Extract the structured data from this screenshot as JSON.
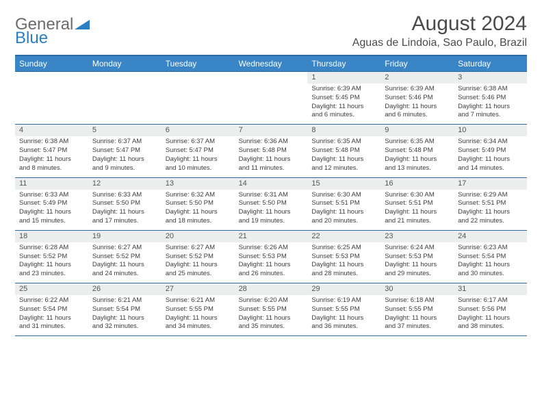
{
  "brand": {
    "part1": "General",
    "part2": "Blue"
  },
  "title": "August 2024",
  "location": "Aguas de Lindoia, Sao Paulo, Brazil",
  "colors": {
    "header_bg": "#3a85c6",
    "header_border": "#2b6aa0",
    "date_bg": "#eceded",
    "text": "#3c3c3c",
    "brand_gray": "#6b6b6b",
    "brand_blue": "#2b7ec2"
  },
  "day_names": [
    "Sunday",
    "Monday",
    "Tuesday",
    "Wednesday",
    "Thursday",
    "Friday",
    "Saturday"
  ],
  "weeks": [
    [
      {
        "n": "",
        "sr": "",
        "ss": "",
        "dl1": "",
        "dl2": ""
      },
      {
        "n": "",
        "sr": "",
        "ss": "",
        "dl1": "",
        "dl2": ""
      },
      {
        "n": "",
        "sr": "",
        "ss": "",
        "dl1": "",
        "dl2": ""
      },
      {
        "n": "",
        "sr": "",
        "ss": "",
        "dl1": "",
        "dl2": ""
      },
      {
        "n": "1",
        "sr": "Sunrise: 6:39 AM",
        "ss": "Sunset: 5:45 PM",
        "dl1": "Daylight: 11 hours",
        "dl2": "and 6 minutes."
      },
      {
        "n": "2",
        "sr": "Sunrise: 6:39 AM",
        "ss": "Sunset: 5:46 PM",
        "dl1": "Daylight: 11 hours",
        "dl2": "and 6 minutes."
      },
      {
        "n": "3",
        "sr": "Sunrise: 6:38 AM",
        "ss": "Sunset: 5:46 PM",
        "dl1": "Daylight: 11 hours",
        "dl2": "and 7 minutes."
      }
    ],
    [
      {
        "n": "4",
        "sr": "Sunrise: 6:38 AM",
        "ss": "Sunset: 5:47 PM",
        "dl1": "Daylight: 11 hours",
        "dl2": "and 8 minutes."
      },
      {
        "n": "5",
        "sr": "Sunrise: 6:37 AM",
        "ss": "Sunset: 5:47 PM",
        "dl1": "Daylight: 11 hours",
        "dl2": "and 9 minutes."
      },
      {
        "n": "6",
        "sr": "Sunrise: 6:37 AM",
        "ss": "Sunset: 5:47 PM",
        "dl1": "Daylight: 11 hours",
        "dl2": "and 10 minutes."
      },
      {
        "n": "7",
        "sr": "Sunrise: 6:36 AM",
        "ss": "Sunset: 5:48 PM",
        "dl1": "Daylight: 11 hours",
        "dl2": "and 11 minutes."
      },
      {
        "n": "8",
        "sr": "Sunrise: 6:35 AM",
        "ss": "Sunset: 5:48 PM",
        "dl1": "Daylight: 11 hours",
        "dl2": "and 12 minutes."
      },
      {
        "n": "9",
        "sr": "Sunrise: 6:35 AM",
        "ss": "Sunset: 5:48 PM",
        "dl1": "Daylight: 11 hours",
        "dl2": "and 13 minutes."
      },
      {
        "n": "10",
        "sr": "Sunrise: 6:34 AM",
        "ss": "Sunset: 5:49 PM",
        "dl1": "Daylight: 11 hours",
        "dl2": "and 14 minutes."
      }
    ],
    [
      {
        "n": "11",
        "sr": "Sunrise: 6:33 AM",
        "ss": "Sunset: 5:49 PM",
        "dl1": "Daylight: 11 hours",
        "dl2": "and 15 minutes."
      },
      {
        "n": "12",
        "sr": "Sunrise: 6:33 AM",
        "ss": "Sunset: 5:50 PM",
        "dl1": "Daylight: 11 hours",
        "dl2": "and 17 minutes."
      },
      {
        "n": "13",
        "sr": "Sunrise: 6:32 AM",
        "ss": "Sunset: 5:50 PM",
        "dl1": "Daylight: 11 hours",
        "dl2": "and 18 minutes."
      },
      {
        "n": "14",
        "sr": "Sunrise: 6:31 AM",
        "ss": "Sunset: 5:50 PM",
        "dl1": "Daylight: 11 hours",
        "dl2": "and 19 minutes."
      },
      {
        "n": "15",
        "sr": "Sunrise: 6:30 AM",
        "ss": "Sunset: 5:51 PM",
        "dl1": "Daylight: 11 hours",
        "dl2": "and 20 minutes."
      },
      {
        "n": "16",
        "sr": "Sunrise: 6:30 AM",
        "ss": "Sunset: 5:51 PM",
        "dl1": "Daylight: 11 hours",
        "dl2": "and 21 minutes."
      },
      {
        "n": "17",
        "sr": "Sunrise: 6:29 AM",
        "ss": "Sunset: 5:51 PM",
        "dl1": "Daylight: 11 hours",
        "dl2": "and 22 minutes."
      }
    ],
    [
      {
        "n": "18",
        "sr": "Sunrise: 6:28 AM",
        "ss": "Sunset: 5:52 PM",
        "dl1": "Daylight: 11 hours",
        "dl2": "and 23 minutes."
      },
      {
        "n": "19",
        "sr": "Sunrise: 6:27 AM",
        "ss": "Sunset: 5:52 PM",
        "dl1": "Daylight: 11 hours",
        "dl2": "and 24 minutes."
      },
      {
        "n": "20",
        "sr": "Sunrise: 6:27 AM",
        "ss": "Sunset: 5:52 PM",
        "dl1": "Daylight: 11 hours",
        "dl2": "and 25 minutes."
      },
      {
        "n": "21",
        "sr": "Sunrise: 6:26 AM",
        "ss": "Sunset: 5:53 PM",
        "dl1": "Daylight: 11 hours",
        "dl2": "and 26 minutes."
      },
      {
        "n": "22",
        "sr": "Sunrise: 6:25 AM",
        "ss": "Sunset: 5:53 PM",
        "dl1": "Daylight: 11 hours",
        "dl2": "and 28 minutes."
      },
      {
        "n": "23",
        "sr": "Sunrise: 6:24 AM",
        "ss": "Sunset: 5:53 PM",
        "dl1": "Daylight: 11 hours",
        "dl2": "and 29 minutes."
      },
      {
        "n": "24",
        "sr": "Sunrise: 6:23 AM",
        "ss": "Sunset: 5:54 PM",
        "dl1": "Daylight: 11 hours",
        "dl2": "and 30 minutes."
      }
    ],
    [
      {
        "n": "25",
        "sr": "Sunrise: 6:22 AM",
        "ss": "Sunset: 5:54 PM",
        "dl1": "Daylight: 11 hours",
        "dl2": "and 31 minutes."
      },
      {
        "n": "26",
        "sr": "Sunrise: 6:21 AM",
        "ss": "Sunset: 5:54 PM",
        "dl1": "Daylight: 11 hours",
        "dl2": "and 32 minutes."
      },
      {
        "n": "27",
        "sr": "Sunrise: 6:21 AM",
        "ss": "Sunset: 5:55 PM",
        "dl1": "Daylight: 11 hours",
        "dl2": "and 34 minutes."
      },
      {
        "n": "28",
        "sr": "Sunrise: 6:20 AM",
        "ss": "Sunset: 5:55 PM",
        "dl1": "Daylight: 11 hours",
        "dl2": "and 35 minutes."
      },
      {
        "n": "29",
        "sr": "Sunrise: 6:19 AM",
        "ss": "Sunset: 5:55 PM",
        "dl1": "Daylight: 11 hours",
        "dl2": "and 36 minutes."
      },
      {
        "n": "30",
        "sr": "Sunrise: 6:18 AM",
        "ss": "Sunset: 5:55 PM",
        "dl1": "Daylight: 11 hours",
        "dl2": "and 37 minutes."
      },
      {
        "n": "31",
        "sr": "Sunrise: 6:17 AM",
        "ss": "Sunset: 5:56 PM",
        "dl1": "Daylight: 11 hours",
        "dl2": "and 38 minutes."
      }
    ]
  ]
}
